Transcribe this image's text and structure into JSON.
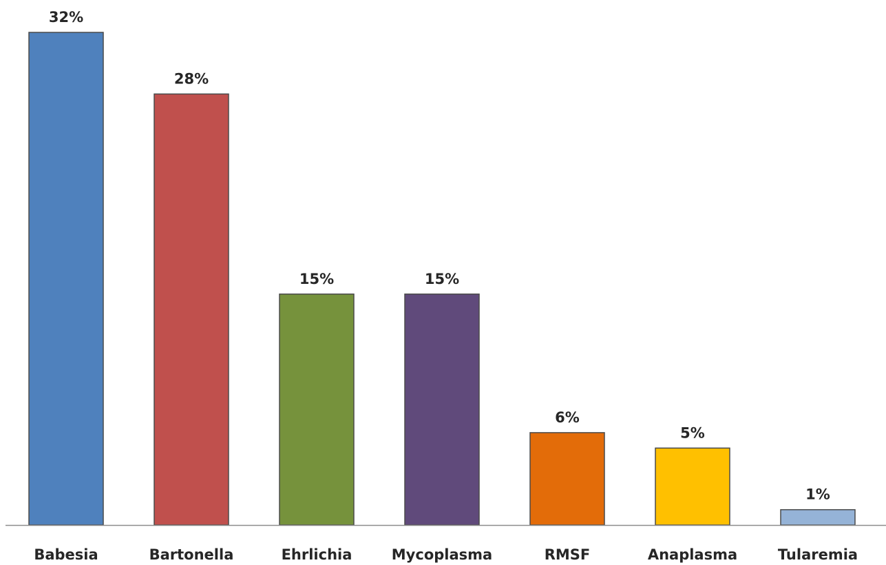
{
  "chart_data": {
    "type": "bar",
    "categories": [
      "Babesia",
      "Bartonella",
      "Ehrlichia",
      "Mycoplasma",
      "RMSF",
      "Anaplasma",
      "Tularemia"
    ],
    "values": [
      32,
      28,
      15,
      15,
      6,
      5,
      1
    ],
    "data_labels": [
      "32%",
      "28%",
      "15%",
      "15%",
      "6%",
      "5%",
      "1%"
    ],
    "colors": [
      "#4f81bd",
      "#c0504d",
      "#76923c",
      "#604a7b",
      "#e36c09",
      "#ffc000",
      "#95b3d7"
    ],
    "title": "",
    "xlabel": "",
    "ylabel": "",
    "ylim": [
      0,
      32
    ],
    "grid": false,
    "legend": "none"
  }
}
